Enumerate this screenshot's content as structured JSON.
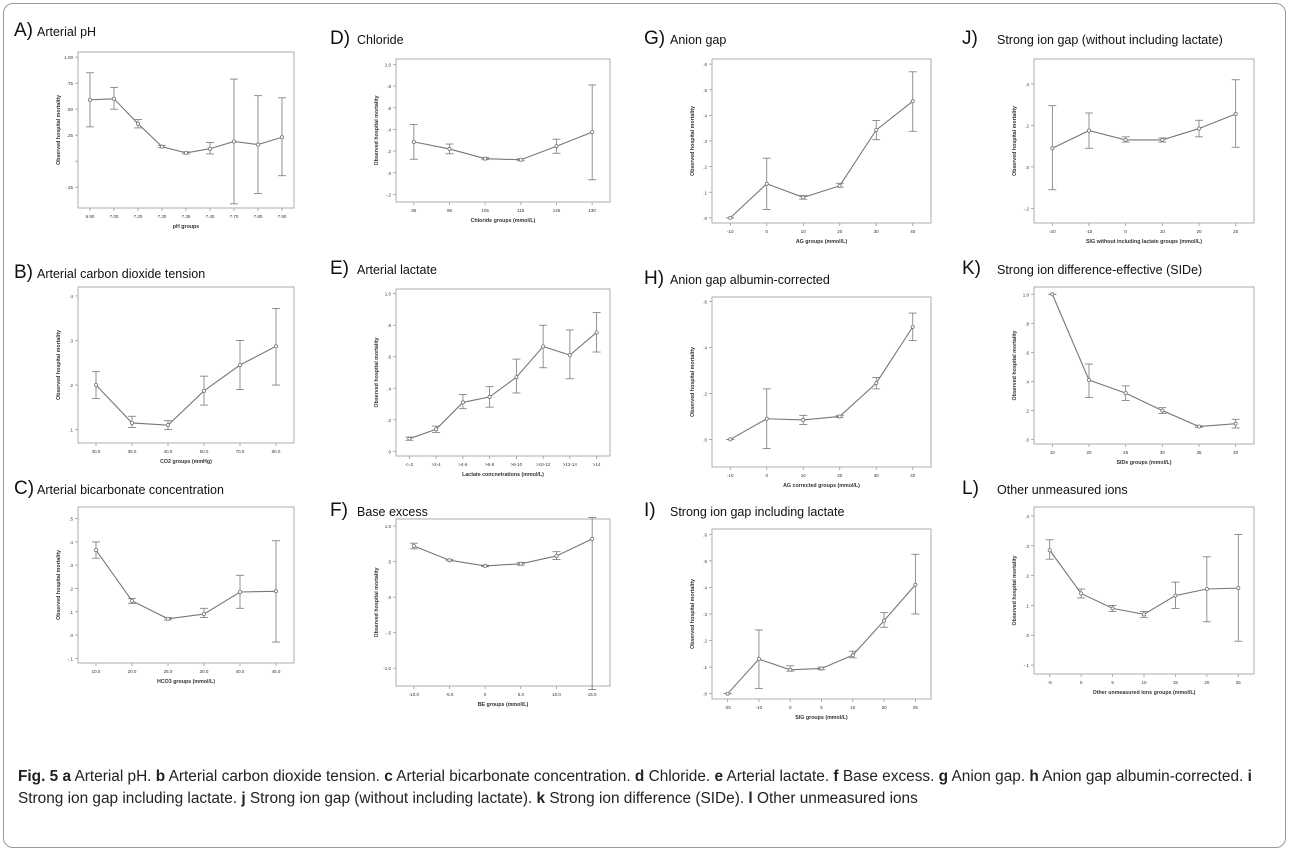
{
  "chart_data": [
    {
      "id": "A",
      "type": "line",
      "letter": "A)",
      "title": "Arterial pH",
      "xlabel": "pH groups",
      "ylabel": "Observed hospital mortality",
      "categories": [
        "6.90",
        "7.00",
        "7.20",
        "7.30",
        "7.35",
        "7.40",
        "7.70",
        "7.80",
        "7.90"
      ],
      "values": [
        0.59,
        0.6,
        0.36,
        0.14,
        0.08,
        0.12,
        0.19,
        0.16,
        0.23
      ],
      "err_low": [
        0.33,
        0.5,
        0.32,
        0.13,
        0.07,
        0.07,
        -0.41,
        -0.31,
        -0.14
      ],
      "err_high": [
        0.85,
        0.71,
        0.4,
        0.15,
        0.09,
        0.18,
        0.79,
        0.63,
        0.61
      ],
      "ylim": [
        -0.45,
        1.05
      ],
      "yticks": [
        -0.25,
        0.0,
        0.25,
        0.5,
        0.75,
        1.0
      ],
      "ytick_labels": [
        "-.25",
        "",
        ".25",
        ".50",
        ".75",
        "1.00"
      ]
    },
    {
      "id": "B",
      "type": "line",
      "letter": "B)",
      "title": "Arterial carbon dioxide tension",
      "xlabel": "CO2 groups (mmHg)",
      "ylabel": "Observed hospital mortality",
      "categories": [
        "30.0",
        "35.0",
        "40.0",
        "50.0",
        "70.0",
        "80.0"
      ],
      "values": [
        0.2,
        0.115,
        0.11,
        0.187,
        0.245,
        0.287
      ],
      "err_low": [
        0.17,
        0.105,
        0.1,
        0.155,
        0.19,
        0.2
      ],
      "err_high": [
        0.23,
        0.13,
        0.12,
        0.22,
        0.3,
        0.372
      ],
      "ylim": [
        0.07,
        0.42
      ],
      "yticks": [
        0.1,
        0.2,
        0.3,
        0.4
      ],
      "ytick_labels": [
        ".1",
        ".2",
        ".3",
        ".4"
      ]
    },
    {
      "id": "C",
      "type": "line",
      "letter": "C)",
      "title": "Arterial bicarbonate concentration",
      "xlabel": "HCO3 groups (mmol/L)",
      "ylabel": "Observed hospital mortality",
      "categories": [
        "10.0",
        "20.0",
        "25.0",
        "30.0",
        "40.0",
        "45.0"
      ],
      "values": [
        0.365,
        0.147,
        0.07,
        0.09,
        0.185,
        0.188
      ],
      "err_low": [
        0.33,
        0.135,
        0.065,
        0.075,
        0.115,
        -0.03
      ],
      "err_high": [
        0.4,
        0.157,
        0.075,
        0.115,
        0.257,
        0.405
      ],
      "ylim": [
        -0.12,
        0.55
      ],
      "yticks": [
        -0.1,
        0.0,
        0.1,
        0.2,
        0.3,
        0.4,
        0.5
      ],
      "ytick_labels": [
        "-.1",
        ".0",
        ".1",
        ".2",
        ".3",
        ".4",
        ".5"
      ]
    },
    {
      "id": "D",
      "type": "line",
      "letter": "D)",
      "title": "Chloride",
      "xlabel": "Chloride groups (mmol/L)",
      "ylabel": "Observed hospital mortality",
      "categories": [
        "85",
        "95",
        "105",
        "115",
        "125",
        "130"
      ],
      "values": [
        0.285,
        0.22,
        0.13,
        0.12,
        0.245,
        0.375
      ],
      "err_low": [
        0.125,
        0.175,
        0.12,
        0.11,
        0.18,
        -0.065
      ],
      "err_high": [
        0.445,
        0.265,
        0.14,
        0.13,
        0.31,
        0.81
      ],
      "ylim": [
        -0.27,
        1.05
      ],
      "yticks": [
        -0.2,
        0.0,
        0.2,
        0.4,
        0.6,
        0.8,
        1.0
      ],
      "ytick_labels": [
        "-.2",
        ".0",
        ".2",
        ".4",
        ".6",
        ".8",
        "1.0"
      ]
    },
    {
      "id": "E",
      "type": "line",
      "letter": "E)",
      "title": "Arterial lactate",
      "xlabel": "Lactate concnetrations (mmol/L)",
      "ylabel": "Observed hospital mortality",
      "categories": [
        "<=2",
        ">2-4",
        ">4-6",
        ">6-8",
        ">8-10",
        ">10-12",
        ">12-14",
        ">14"
      ],
      "values": [
        0.08,
        0.14,
        0.31,
        0.345,
        0.47,
        0.665,
        0.61,
        0.755
      ],
      "err_low": [
        0.07,
        0.12,
        0.27,
        0.28,
        0.37,
        0.53,
        0.46,
        0.63
      ],
      "err_high": [
        0.09,
        0.16,
        0.36,
        0.41,
        0.585,
        0.8,
        0.77,
        0.88
      ],
      "ylim": [
        -0.03,
        1.03
      ],
      "yticks": [
        0.0,
        0.2,
        0.4,
        0.6,
        0.8,
        1.0
      ],
      "ytick_labels": [
        ".0",
        ".2",
        ".4",
        ".6",
        ".8",
        "1.0"
      ]
    },
    {
      "id": "F",
      "type": "line",
      "letter": "F)",
      "title": "Base excess",
      "xlabel": "BE groups (mmol/L)",
      "ylabel": "Observed hospital mortality",
      "categories": [
        "-10.0",
        "-5.0",
        "0",
        "5.0",
        "10.0",
        "15.0"
      ],
      "values": [
        0.72,
        0.52,
        0.44,
        0.47,
        0.58,
        0.82
      ],
      "err_low": [
        0.68,
        0.51,
        0.43,
        0.45,
        0.53,
        -1.3
      ],
      "err_high": [
        0.76,
        0.53,
        0.45,
        0.49,
        0.64,
        1.12
      ],
      "ylim": [
        -1.25,
        1.1
      ],
      "yticks": [
        -1.0,
        -0.5,
        0.0,
        0.5,
        1.0
      ],
      "ytick_labels": [
        "-1.0",
        "-.5",
        ".0",
        ".5",
        "1.0"
      ]
    },
    {
      "id": "G",
      "type": "line",
      "letter": "G)",
      "title": "Anion gap",
      "xlabel": "AG groups (mmol/L)",
      "ylabel": "Observed hospital mortality",
      "categories": [
        "-10",
        "0",
        "10",
        "20",
        "30",
        "40"
      ],
      "values": [
        0.0,
        0.133,
        0.08,
        0.125,
        0.343,
        0.455
      ],
      "err_low": [
        0.0,
        0.033,
        0.073,
        0.12,
        0.305,
        0.338
      ],
      "err_high": [
        0.0,
        0.233,
        0.087,
        0.135,
        0.38,
        0.57
      ],
      "ylim": [
        -0.02,
        0.62
      ],
      "yticks": [
        0.0,
        0.1,
        0.2,
        0.3,
        0.4,
        0.5,
        0.6
      ],
      "ytick_labels": [
        ".0",
        ".1",
        ".2",
        ".3",
        ".4",
        ".5",
        ".6"
      ]
    },
    {
      "id": "H",
      "type": "line",
      "letter": "H)",
      "title": "Anion gap albumin-corrected",
      "xlabel": "AG corrected groups (mmol/L)",
      "ylabel": "Observed hospital mortality",
      "categories": [
        "-10",
        "0",
        "10",
        "20",
        "30",
        "40"
      ],
      "values": [
        0.0,
        0.09,
        0.085,
        0.1,
        0.245,
        0.49
      ],
      "err_low": [
        0.0,
        -0.04,
        0.065,
        0.095,
        0.22,
        0.43
      ],
      "err_high": [
        0.0,
        0.22,
        0.105,
        0.105,
        0.27,
        0.55
      ],
      "ylim": [
        -0.12,
        0.62
      ],
      "yticks": [
        0.0,
        0.2,
        0.4,
        0.6
      ],
      "ytick_labels": [
        ".0",
        ".2",
        ".4",
        ".6"
      ]
    },
    {
      "id": "I",
      "type": "line",
      "letter": "I)",
      "title": "Strong ion gap including lactate",
      "xlabel": "SIG groups (mmol/L)",
      "ylabel": "Observed hospital mortality",
      "categories": [
        "-20",
        "-10",
        "0",
        "5",
        "10",
        "20",
        "25"
      ],
      "values": [
        0.0,
        0.13,
        0.09,
        0.095,
        0.145,
        0.275,
        0.41
      ],
      "err_low": [
        0.0,
        0.02,
        0.085,
        0.09,
        0.135,
        0.25,
        0.3
      ],
      "err_high": [
        0.0,
        0.24,
        0.105,
        0.1,
        0.16,
        0.305,
        0.525
      ],
      "ylim": [
        -0.02,
        0.62
      ],
      "yticks": [
        0.0,
        0.1,
        0.2,
        0.3,
        0.4,
        0.5,
        0.6
      ],
      "ytick_labels": [
        ".0",
        ".1",
        ".2",
        ".3",
        ".4",
        ".5",
        ".6"
      ]
    },
    {
      "id": "J",
      "type": "line",
      "letter": "J)",
      "title": "Strong ion gap (without including lactate)",
      "xlabel": "SIG without including lactate groups (mmol/L)",
      "ylabel": "Observed hospital mortality",
      "categories": [
        "-20",
        "-10",
        "0",
        "10",
        "20",
        "25"
      ],
      "values": [
        0.09,
        0.175,
        0.13,
        0.13,
        0.185,
        0.255
      ],
      "err_low": [
        -0.11,
        0.09,
        0.12,
        0.12,
        0.145,
        0.095
      ],
      "err_high": [
        0.295,
        0.26,
        0.145,
        0.14,
        0.225,
        0.42
      ],
      "ylim": [
        -0.27,
        0.52
      ],
      "yticks": [
        -0.2,
        0.0,
        0.2,
        0.4
      ],
      "ytick_labels": [
        "-.2",
        ".0",
        ".2",
        ".4"
      ]
    },
    {
      "id": "K",
      "type": "line",
      "letter": "K)",
      "title": "Strong ion difference-effective (SIDe)",
      "xlabel": "SIDe groups (mmol/L)",
      "ylabel": "Observed hospital mortality",
      "categories": [
        "10",
        "20",
        "25",
        "30",
        "35",
        "40"
      ],
      "values": [
        1.0,
        0.41,
        0.32,
        0.2,
        0.09,
        0.11
      ],
      "err_low": [
        1.0,
        0.29,
        0.27,
        0.18,
        0.085,
        0.08
      ],
      "err_high": [
        1.0,
        0.52,
        0.37,
        0.22,
        0.095,
        0.14
      ],
      "ylim": [
        -0.03,
        1.05
      ],
      "yticks": [
        0.0,
        0.2,
        0.4,
        0.6,
        0.8,
        1.0
      ],
      "ytick_labels": [
        ".0",
        ".2",
        ".4",
        ".6",
        ".8",
        "1.0"
      ]
    },
    {
      "id": "L",
      "type": "line",
      "letter": "L)",
      "title": "Other unmeasured ions",
      "xlabel": "Other unmeasured ions groups (mmol/L)",
      "ylabel": "Observed hospital mortality",
      "categories": [
        "-5",
        "0",
        "5",
        "10",
        "15",
        "20",
        "25"
      ],
      "values": [
        0.285,
        0.14,
        0.09,
        0.07,
        0.133,
        0.155,
        0.158
      ],
      "err_low": [
        0.255,
        0.125,
        0.08,
        0.06,
        0.09,
        0.045,
        -0.02
      ],
      "err_high": [
        0.32,
        0.155,
        0.1,
        0.08,
        0.178,
        0.263,
        0.338
      ],
      "ylim": [
        -0.13,
        0.43
      ],
      "yticks": [
        -0.1,
        0.0,
        0.1,
        0.2,
        0.3,
        0.4
      ],
      "ytick_labels": [
        "-.1",
        ".0",
        ".1",
        ".2",
        ".3",
        ".4"
      ]
    }
  ],
  "caption": {
    "fig_label": "Fig. 5",
    "items": [
      {
        "letter": "a",
        "text": "Arterial pH."
      },
      {
        "letter": "b",
        "text": "Arterial carbon dioxide tension."
      },
      {
        "letter": "c",
        "text": "Arterial bicarbonate concentration."
      },
      {
        "letter": "d",
        "text": "Chloride."
      },
      {
        "letter": "e",
        "text": "Arterial lactate."
      },
      {
        "letter": "f",
        "text": "Base excess."
      },
      {
        "letter": "g",
        "text": "Anion gap."
      },
      {
        "letter": "h",
        "text": "Anion gap albumin-corrected."
      },
      {
        "letter": "i",
        "text": "Strong ion gap including lactate."
      },
      {
        "letter": "j",
        "text": "Strong ion gap (without including lactate)."
      },
      {
        "letter": "k",
        "text": "Strong ion difference (SIDe)."
      },
      {
        "letter": "l",
        "text": "Other unmeasured ions"
      }
    ]
  },
  "colors": {
    "line": "#777777",
    "axis": "#9a9a9a",
    "text": "#333333",
    "frame": "#9a9a9a"
  }
}
